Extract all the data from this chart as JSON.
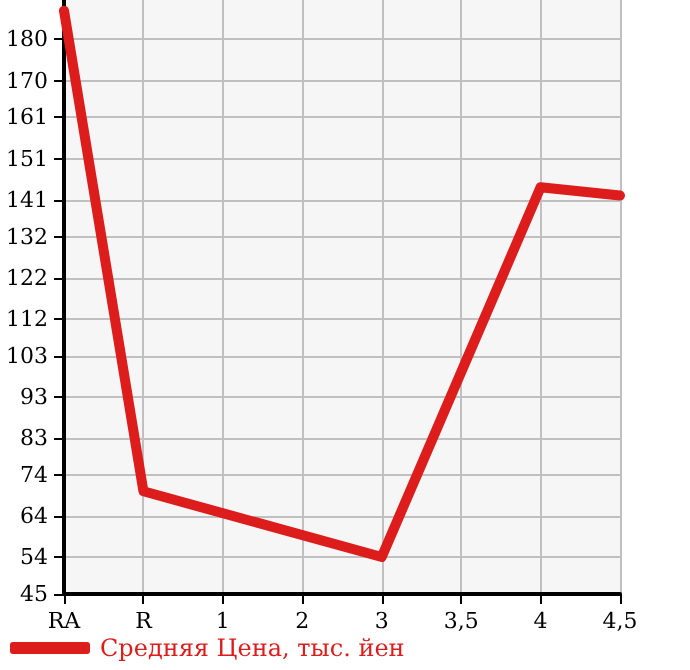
{
  "chart_data": {
    "type": "line",
    "categories": [
      "RA",
      "R",
      "1",
      "2",
      "3",
      "3,5",
      "4",
      "4,5"
    ],
    "series": [
      {
        "name": "Средняя Цена, тыс. йен",
        "color": "#dd1c1c",
        "values": [
          187,
          70,
          null,
          null,
          54,
          null,
          144,
          142
        ]
      }
    ],
    "ylim": [
      45,
      189.6
    ],
    "yticks": [
      45,
      54,
      64,
      74,
      83,
      93,
      103,
      112,
      122,
      132,
      141,
      151,
      161,
      170,
      180
    ],
    "grid": true,
    "legend": "bottom left",
    "marker": "none",
    "line_style": "solid"
  }
}
